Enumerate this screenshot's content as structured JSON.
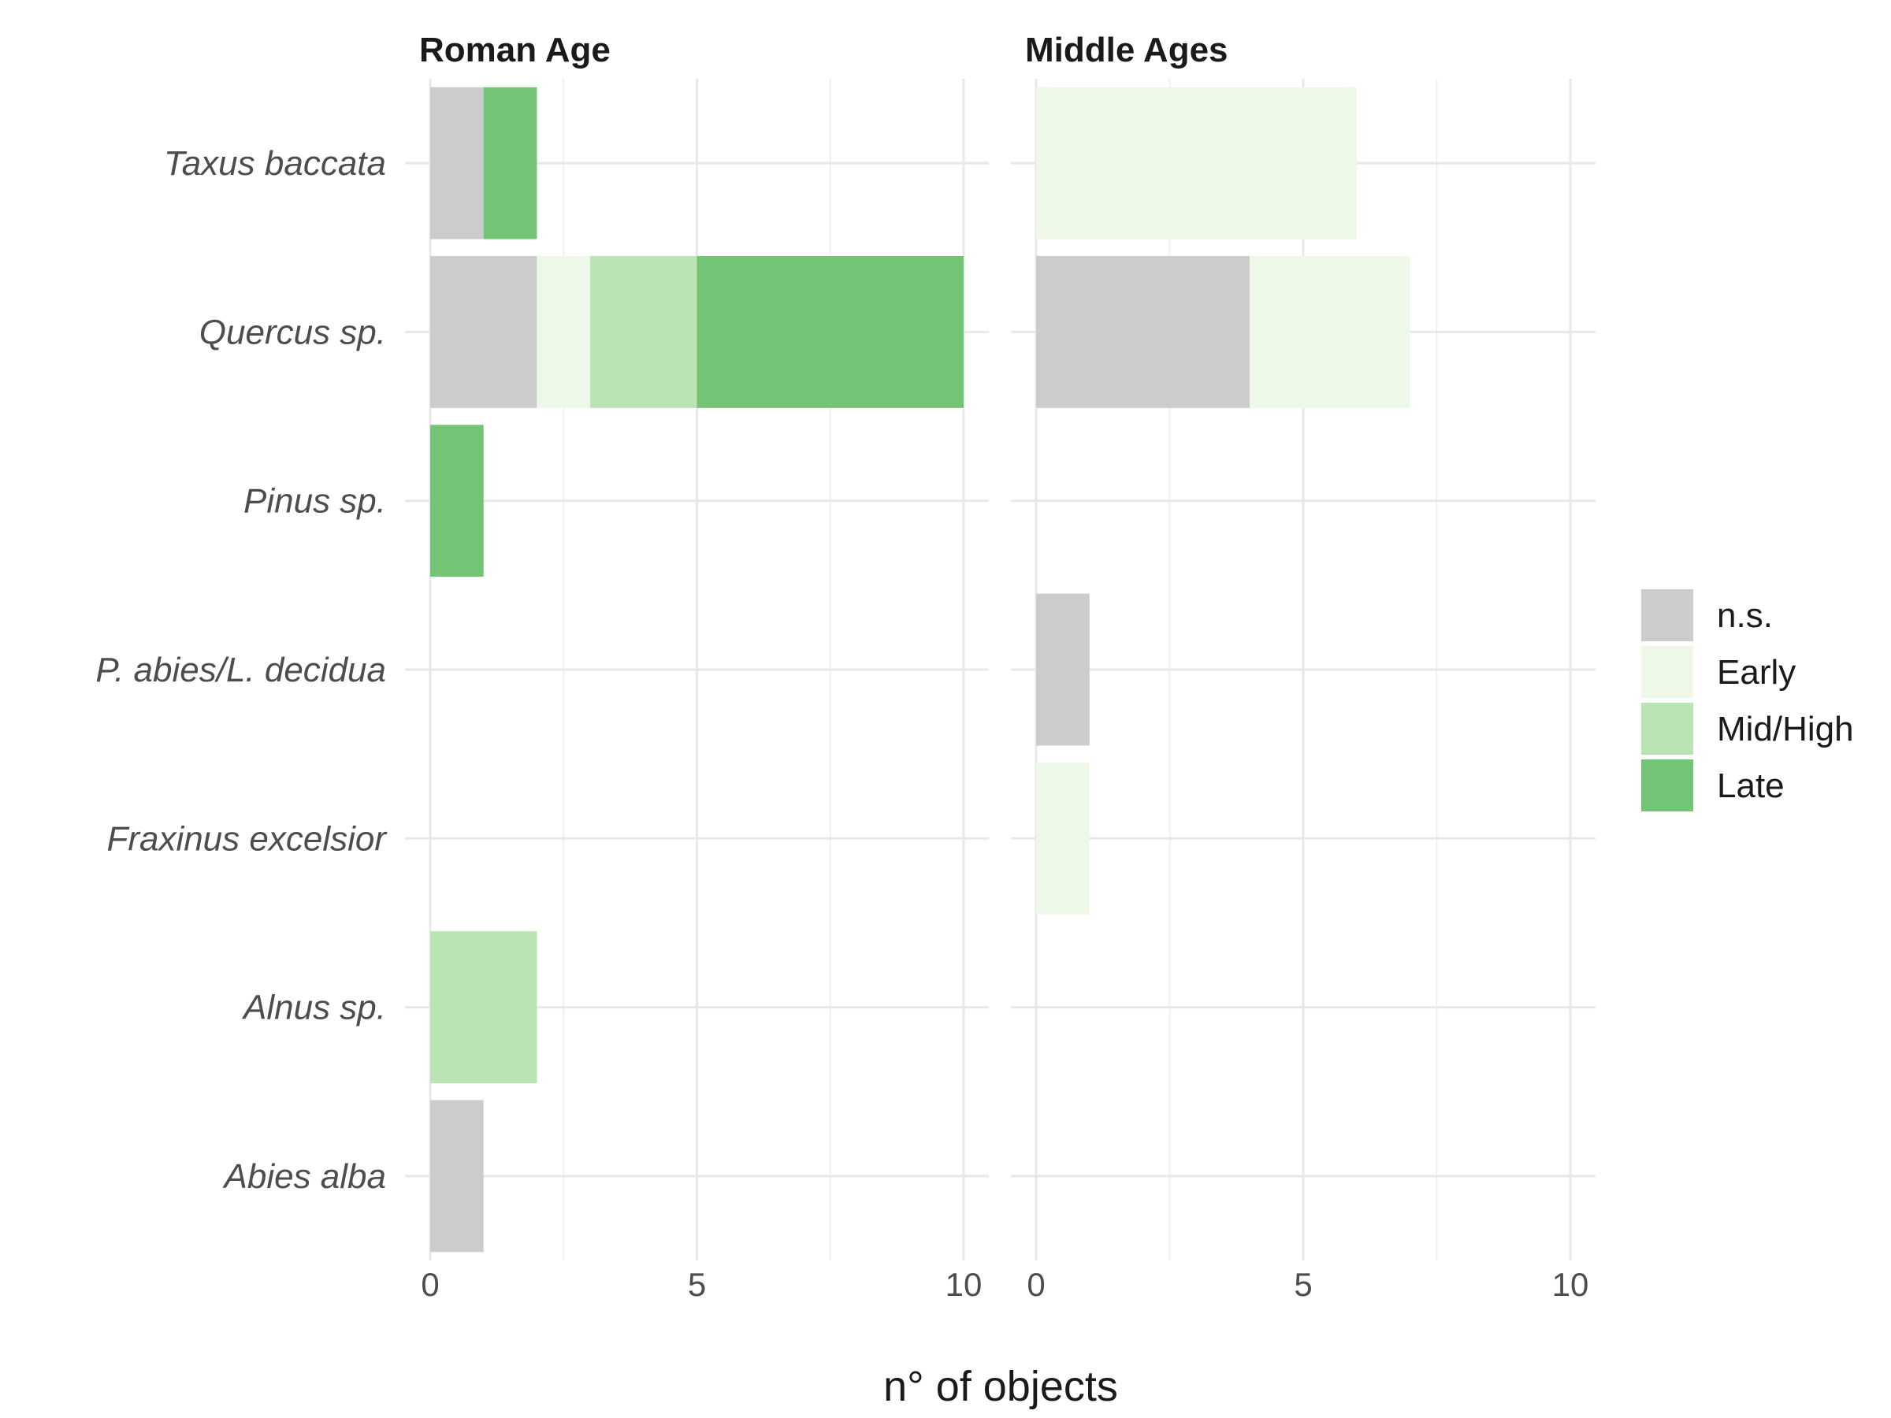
{
  "chart_data": {
    "type": "bar",
    "orientation": "horizontal",
    "stacked": true,
    "xlabel": "n° of objects",
    "xlim": [
      0,
      10.5
    ],
    "x_ticks": [
      "0",
      "5",
      "10"
    ],
    "x_tick_values": [
      0,
      5,
      10
    ],
    "categories": [
      "Taxus baccata",
      "Quercus sp.",
      "Pinus sp.",
      "P. abies/L. decidua",
      "Fraxinus excelsior",
      "Alnus sp.",
      "Abies alba"
    ],
    "legend": {
      "position": "right",
      "entries": [
        {
          "label": "n.s.",
          "color": "#cccccc"
        },
        {
          "label": "Early",
          "color": "#edf8e9"
        },
        {
          "label": "Mid/High",
          "color": "#bae4b3"
        },
        {
          "label": "Late",
          "color": "#74c476"
        }
      ]
    },
    "grid": true,
    "facets": [
      {
        "title": "Roman Age",
        "series": [
          {
            "name": "n.s.",
            "values": [
              1,
              2,
              0,
              0,
              0,
              0,
              1
            ]
          },
          {
            "name": "Early",
            "values": [
              0,
              1,
              0,
              0,
              0,
              0,
              0
            ]
          },
          {
            "name": "Mid/High",
            "values": [
              0,
              2,
              0,
              0,
              0,
              2,
              0
            ]
          },
          {
            "name": "Late",
            "values": [
              1,
              5,
              1,
              0,
              0,
              0,
              0
            ]
          }
        ]
      },
      {
        "title": "Middle Ages",
        "series": [
          {
            "name": "n.s.",
            "values": [
              0,
              4,
              0,
              1,
              0,
              0,
              0
            ]
          },
          {
            "name": "Early",
            "values": [
              6,
              3,
              0,
              0,
              1,
              0,
              0
            ]
          },
          {
            "name": "Mid/High",
            "values": [
              0,
              0,
              0,
              0,
              0,
              0,
              0
            ]
          },
          {
            "name": "Late",
            "values": [
              0,
              0,
              0,
              0,
              0,
              0,
              0
            ]
          }
        ]
      }
    ]
  }
}
